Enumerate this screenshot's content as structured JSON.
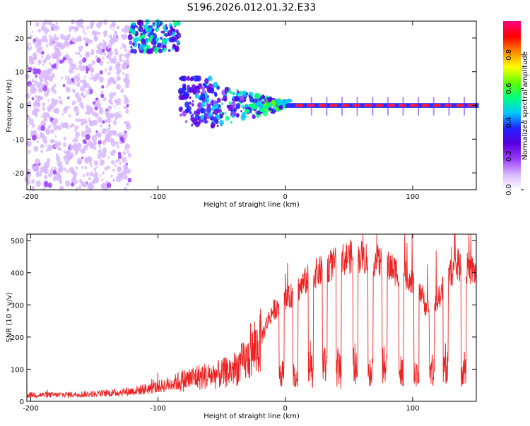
{
  "title": "S196.2026.012.01.32.E33",
  "chart_data": [
    {
      "type": "heatmap",
      "xlabel": "Height of straight line (km)",
      "ylabel": "Frequency (Hz)",
      "xlim": [
        -203,
        150
      ],
      "ylim": [
        -25,
        25
      ],
      "x_ticks": [
        -200,
        -100,
        0,
        100
      ],
      "x_tick_labels": [
        "-200",
        "-100",
        "0",
        "100"
      ],
      "y_ticks": [
        -20,
        -10,
        0,
        10,
        20
      ],
      "y_tick_labels": [
        "-20",
        "-10",
        "0",
        "10",
        "20"
      ],
      "colorbar": {
        "label": "Normalized spectral amplitude",
        "range": [
          0,
          1
        ],
        "ticks": [
          0,
          0.2,
          0.4,
          0.6,
          0.8
        ],
        "tick_labels": [
          "0.0",
          "0.2",
          "0.4",
          "0.6",
          "0.8"
        ],
        "colors": [
          "#ffffff",
          "#d8b8ff",
          "#9a3cff",
          "#5a00e0",
          "#2020ff",
          "#00c8ff",
          "#00ff80",
          "#60ff00",
          "#ffff00",
          "#ff8800",
          "#ff0000",
          "#ff0080"
        ]
      },
      "regions": [
        {
          "description_x": [
            -203,
            -122
          ],
          "freq_range": [
            -25,
            25
          ],
          "amplitude": 0.12
        },
        {
          "description_x": [
            -122,
            -83
          ],
          "freq_range": [
            16,
            25
          ],
          "amplitude": 0.3
        },
        {
          "description_x": [
            -83,
            0
          ],
          "freq_range": [
            -12,
            8
          ],
          "amplitude": 0.28
        },
        {
          "description_x": [
            0,
            150
          ],
          "freq_range": [
            -0.6,
            0.6
          ],
          "amplitude": 0.9
        }
      ]
    },
    {
      "type": "line",
      "xlabel": "Height of straight line (km)",
      "ylabel": "SNR (10 * v/v)",
      "xlim": [
        -203,
        150
      ],
      "ylim": [
        0,
        520
      ],
      "x_ticks": [
        -200,
        -100,
        0,
        100
      ],
      "x_tick_labels": [
        "-200",
        "-100",
        "0",
        "100"
      ],
      "y_ticks": [
        0,
        100,
        200,
        300,
        400,
        500
      ],
      "y_tick_labels": [
        "0",
        "100",
        "200",
        "300",
        "400",
        "500"
      ],
      "color": "#ee2222",
      "series": [
        {
          "name": "SNR",
          "x": [
            -203,
            -190,
            -180,
            -170,
            -160,
            -150,
            -140,
            -130,
            -120,
            -110,
            -100,
            -90,
            -80,
            -70,
            -60,
            -50,
            -40,
            -30,
            -20,
            -15,
            -10,
            -5,
            0,
            5,
            10,
            15,
            20,
            25,
            30,
            35,
            40,
            45,
            50,
            55,
            60,
            65,
            70,
            75,
            80,
            85,
            90,
            95,
            100,
            105,
            110,
            115,
            120,
            125,
            130,
            135,
            140,
            145,
            150
          ],
          "values": [
            20,
            20,
            20,
            21,
            22,
            23,
            25,
            28,
            32,
            38,
            45,
            55,
            65,
            75,
            80,
            85,
            100,
            130,
            180,
            240,
            280,
            300,
            310,
            330,
            350,
            370,
            390,
            400,
            410,
            420,
            430,
            440,
            450,
            450,
            450,
            445,
            440,
            430,
            420,
            410,
            400,
            390,
            380,
            360,
            300,
            270,
            320,
            360,
            400,
            420,
            420,
            410,
            400
          ]
        }
      ],
      "dropouts": [
        {
          "x": -3,
          "value": 95
        },
        {
          "x": 8,
          "value": 80
        },
        {
          "x": 20,
          "value": 95
        },
        {
          "x": 31,
          "value": 110
        },
        {
          "x": 42,
          "value": 95
        },
        {
          "x": 55,
          "value": 110
        },
        {
          "x": 67,
          "value": 95
        },
        {
          "x": 78,
          "value": 110
        },
        {
          "x": 91,
          "value": 95
        },
        {
          "x": 103,
          "value": 80
        },
        {
          "x": 115,
          "value": 95
        },
        {
          "x": 126,
          "value": 100
        },
        {
          "x": 140,
          "value": 100
        }
      ]
    }
  ]
}
